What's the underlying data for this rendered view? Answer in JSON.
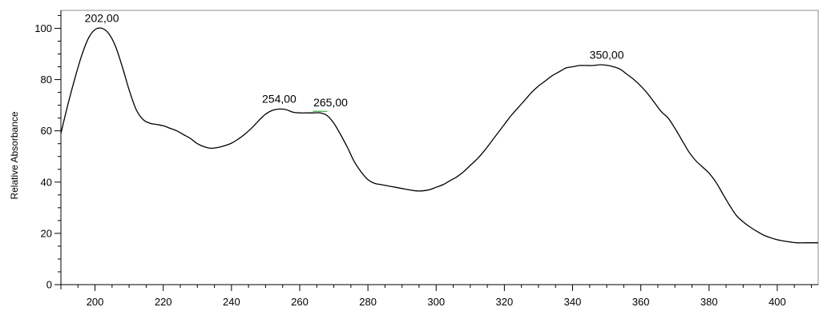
{
  "chart_data": {
    "type": "line",
    "title": "",
    "xlabel": "",
    "ylabel": "Relative Absorbance",
    "xlim": [
      190,
      412
    ],
    "ylim": [
      0,
      107
    ],
    "x_ticks": [
      "200",
      "220",
      "240",
      "260",
      "280",
      "300",
      "320",
      "340",
      "360",
      "380",
      "400"
    ],
    "y_ticks": [
      "0",
      "20",
      "40",
      "60",
      "80",
      "100"
    ],
    "grid": false,
    "series": [
      {
        "color": "#000000",
        "points": [
          [
            190,
            59
          ],
          [
            192,
            70
          ],
          [
            194,
            80
          ],
          [
            196,
            89
          ],
          [
            198,
            96
          ],
          [
            200,
            99.5
          ],
          [
            202,
            100
          ],
          [
            204,
            98
          ],
          [
            206,
            93
          ],
          [
            208,
            85
          ],
          [
            210,
            76
          ],
          [
            212,
            68.5
          ],
          [
            214,
            64.5
          ],
          [
            216,
            63
          ],
          [
            218,
            62.5
          ],
          [
            220,
            62
          ],
          [
            222,
            61
          ],
          [
            224,
            60
          ],
          [
            226,
            58.5
          ],
          [
            228,
            57
          ],
          [
            230,
            55
          ],
          [
            232,
            53.8
          ],
          [
            234,
            53.2
          ],
          [
            236,
            53.5
          ],
          [
            238,
            54.2
          ],
          [
            240,
            55.2
          ],
          [
            242,
            56.8
          ],
          [
            244,
            58.8
          ],
          [
            246,
            61.2
          ],
          [
            248,
            64
          ],
          [
            250,
            66.5
          ],
          [
            252,
            68
          ],
          [
            254,
            68.5
          ],
          [
            256,
            68.3
          ],
          [
            258,
            67.3
          ],
          [
            260,
            67
          ],
          [
            262,
            67
          ],
          [
            264,
            67
          ],
          [
            266,
            67
          ],
          [
            268,
            66
          ],
          [
            270,
            63
          ],
          [
            272,
            58.5
          ],
          [
            274,
            53.5
          ],
          [
            276,
            48
          ],
          [
            278,
            44
          ],
          [
            280,
            41
          ],
          [
            282,
            39.5
          ],
          [
            284,
            39
          ],
          [
            286,
            38.5
          ],
          [
            288,
            38
          ],
          [
            290,
            37.5
          ],
          [
            292,
            37
          ],
          [
            294,
            36.6
          ],
          [
            296,
            36.6
          ],
          [
            298,
            37
          ],
          [
            300,
            38
          ],
          [
            302,
            39
          ],
          [
            304,
            40.5
          ],
          [
            306,
            42
          ],
          [
            308,
            44
          ],
          [
            310,
            46.5
          ],
          [
            312,
            49
          ],
          [
            314,
            52
          ],
          [
            316,
            55.5
          ],
          [
            318,
            59
          ],
          [
            320,
            62.5
          ],
          [
            322,
            66
          ],
          [
            324,
            69
          ],
          [
            326,
            72
          ],
          [
            328,
            75
          ],
          [
            330,
            77.5
          ],
          [
            332,
            79.5
          ],
          [
            334,
            81.5
          ],
          [
            336,
            83
          ],
          [
            338,
            84.5
          ],
          [
            340,
            85
          ],
          [
            342,
            85.5
          ],
          [
            344,
            85.5
          ],
          [
            346,
            85.5
          ],
          [
            348,
            85.8
          ],
          [
            350,
            85.6
          ],
          [
            352,
            85
          ],
          [
            354,
            84
          ],
          [
            356,
            82
          ],
          [
            358,
            80
          ],
          [
            360,
            77.5
          ],
          [
            362,
            74.5
          ],
          [
            364,
            71
          ],
          [
            366,
            67.5
          ],
          [
            368,
            65
          ],
          [
            370,
            61
          ],
          [
            372,
            56.5
          ],
          [
            374,
            52
          ],
          [
            376,
            48.5
          ],
          [
            378,
            46
          ],
          [
            380,
            43.5
          ],
          [
            382,
            40
          ],
          [
            384,
            35.5
          ],
          [
            386,
            31
          ],
          [
            388,
            27
          ],
          [
            390,
            24.5
          ],
          [
            392,
            22.5
          ],
          [
            394,
            20.8
          ],
          [
            396,
            19.3
          ],
          [
            398,
            18.3
          ],
          [
            400,
            17.5
          ],
          [
            402,
            17
          ],
          [
            404,
            16.6
          ],
          [
            406,
            16.3
          ],
          [
            408,
            16.3
          ],
          [
            410,
            16.3
          ],
          [
            412,
            16.3
          ]
        ]
      }
    ],
    "peak_labels": [
      {
        "text": "202,00",
        "x": 202,
        "y": 100
      },
      {
        "text": "254,00",
        "x": 254,
        "y": 68.5
      },
      {
        "text": "265,00",
        "x": 266,
        "y": 67
      },
      {
        "text": "350,00",
        "x": 350,
        "y": 85.6
      }
    ],
    "colors": {
      "line": "#000000",
      "marker": "#3cb043",
      "frame": "#8c8c8c"
    }
  }
}
